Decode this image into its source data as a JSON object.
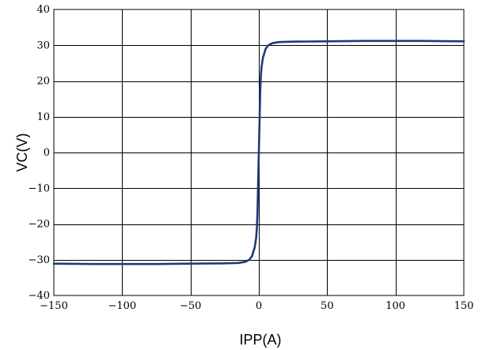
{
  "chart_data": {
    "type": "line",
    "title": "",
    "xlabel": "IPP(A)",
    "ylabel": "VC(V)",
    "xlim": [
      -150,
      150
    ],
    "ylim": [
      -40,
      40
    ],
    "x_ticks": [
      -150,
      -100,
      -50,
      0,
      50,
      100,
      150
    ],
    "y_ticks": [
      -40,
      -30,
      -20,
      -10,
      0,
      10,
      20,
      30,
      40
    ],
    "x_tick_labels": [
      "−150",
      "−100",
      "−50",
      "0",
      "50",
      "100",
      "150"
    ],
    "y_tick_labels": [
      "−40",
      "−30",
      "−20",
      "−10",
      "0",
      "10",
      "20",
      "30",
      "40"
    ],
    "grid": true,
    "line_color": "#1f3a7a",
    "series": [
      {
        "name": "",
        "x": [
          -150,
          -120,
          -100,
          -75,
          -50,
          -25,
          -15,
          -10,
          -7,
          -5,
          -3,
          -2,
          -1.5,
          -1,
          -0.6,
          0,
          0.6,
          1,
          1.5,
          2,
          3,
          5,
          7,
          10,
          15,
          25,
          50,
          75,
          100,
          120,
          150
        ],
        "y": [
          -31.1,
          -31.2,
          -31.2,
          -31.2,
          -31.1,
          -31.0,
          -30.9,
          -30.6,
          -30.0,
          -29.0,
          -26.5,
          -24.0,
          -21.5,
          -17.0,
          -10.0,
          0,
          10.0,
          17.0,
          21.5,
          24.0,
          26.5,
          29.0,
          30.0,
          30.6,
          30.9,
          31.0,
          31.1,
          31.2,
          31.2,
          31.2,
          31.1
        ]
      }
    ]
  }
}
